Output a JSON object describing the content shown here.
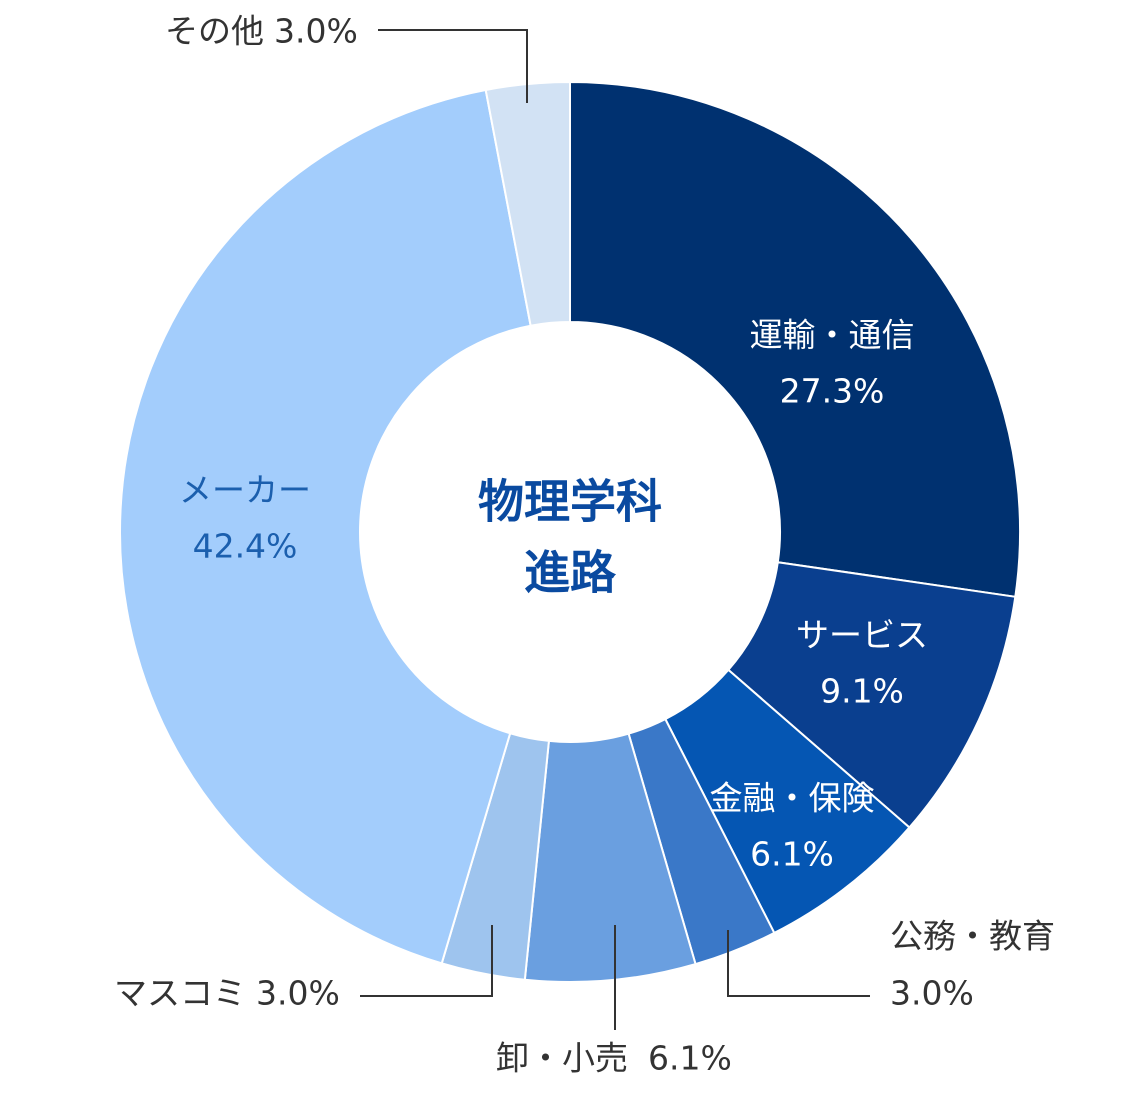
{
  "chart_data": {
    "type": "donut",
    "title": [
      "物理学科",
      "進路"
    ],
    "categories": [
      "運輸・通信",
      "サービス",
      "金融・保険",
      "公務・教育",
      "卸・小売",
      "マスコミ",
      "メーカー",
      "その他"
    ],
    "values": [
      27.3,
      9.1,
      6.1,
      3.0,
      6.1,
      3.0,
      42.4,
      3.0
    ],
    "value_labels": [
      "27.3%",
      "9.1%",
      "6.1%",
      "3.0%",
      "6.1%",
      "3.0%",
      "42.4%",
      "3.0%"
    ],
    "colors": [
      "#003170",
      "#0a3f8f",
      "#0556b3",
      "#3a78c8",
      "#6a9fe0",
      "#9ec4ee",
      "#a3cdfc",
      "#d2e2f4"
    ]
  }
}
